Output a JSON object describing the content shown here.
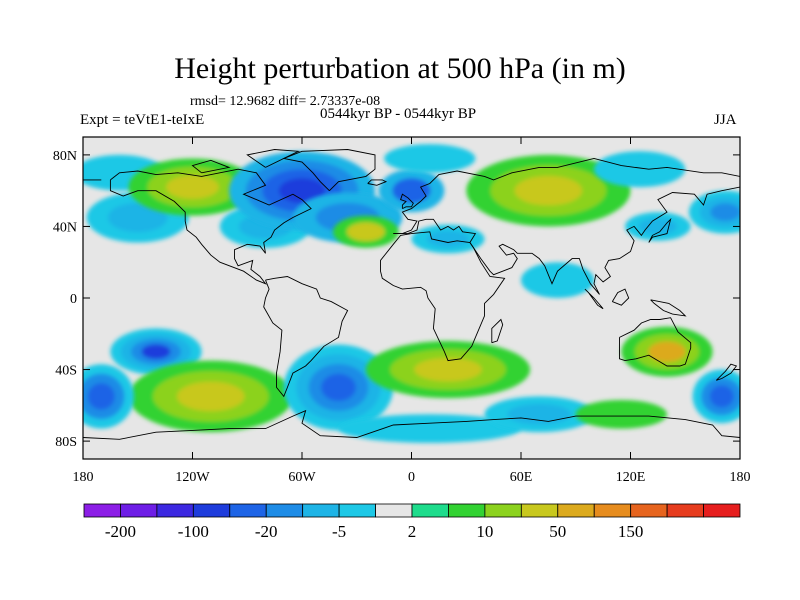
{
  "title": "Height perturbation at 500 hPa (in m)",
  "stats": "rmsd= 12.9682 diff= 2.73337e-08",
  "subtitle": "0544kyr BP - 0544kyr BP",
  "expt": "Expt = teVtE1-teIxE",
  "season": "JJA",
  "map": {
    "projection": "cylindrical-equidistant",
    "lon_range": [
      -180,
      180
    ],
    "lat_range": [
      -90,
      90
    ],
    "lat_ticks": [
      {
        "value": 80,
        "label": "80N"
      },
      {
        "value": 40,
        "label": "40N"
      },
      {
        "value": 0,
        "label": "0"
      },
      {
        "value": -40,
        "label": "40S"
      },
      {
        "value": -80,
        "label": "80S"
      }
    ],
    "lon_ticks": [
      {
        "value": -180,
        "label": "180"
      },
      {
        "value": -120,
        "label": "120W"
      },
      {
        "value": -60,
        "label": "60W"
      },
      {
        "value": 0,
        "label": "0"
      },
      {
        "value": 60,
        "label": "60E"
      },
      {
        "value": 120,
        "label": "120E"
      },
      {
        "value": 180,
        "label": "180"
      }
    ],
    "background_color": "#e6e6e6"
  },
  "colorbar": {
    "colors": [
      "#8c1ee6",
      "#6e1ee6",
      "#3c28e1",
      "#1e3cdc",
      "#1e64e6",
      "#1e8ce6",
      "#1eb4e6",
      "#1ec8e6",
      "#e6e6e6",
      "#1edc8c",
      "#32d232",
      "#8cd21e",
      "#c8c81e",
      "#dcaa1e",
      "#e68c1e",
      "#e6641e",
      "#e63c1e",
      "#e61e1e"
    ],
    "labels": [
      {
        "after_box": 1,
        "text": "-200"
      },
      {
        "after_box": 3,
        "text": "-100"
      },
      {
        "after_box": 5,
        "text": "-20"
      },
      {
        "after_box": 7,
        "text": "-5"
      },
      {
        "after_box": 9,
        "text": "2"
      },
      {
        "after_box": 11,
        "text": "10"
      },
      {
        "after_box": 13,
        "text": "50"
      },
      {
        "after_box": 15,
        "text": "150"
      }
    ]
  },
  "anomalies": [
    {
      "lon": -160,
      "lat": 70,
      "rx": 25,
      "ry": 10,
      "colors": [
        "#1ec8e6"
      ]
    },
    {
      "lon": -150,
      "lat": 45,
      "rx": 28,
      "ry": 14,
      "colors": [
        "#1ec8e6",
        "#1eb4e6"
      ]
    },
    {
      "lon": -120,
      "lat": 62,
      "rx": 35,
      "ry": 16,
      "colors": [
        "#32d232",
        "#8cd21e",
        "#c8c81e"
      ]
    },
    {
      "lon": -80,
      "lat": 40,
      "rx": 25,
      "ry": 12,
      "colors": [
        "#1ec8e6",
        "#1eb4e6"
      ]
    },
    {
      "lon": -60,
      "lat": 60,
      "rx": 40,
      "ry": 22,
      "colors": [
        "#1eb4e6",
        "#1e8ce6",
        "#1e64e6",
        "#1e3cdc"
      ]
    },
    {
      "lon": -35,
      "lat": 45,
      "rx": 30,
      "ry": 14,
      "colors": [
        "#1eb4e6",
        "#1e8ce6"
      ]
    },
    {
      "lon": -25,
      "lat": 37,
      "rx": 18,
      "ry": 9,
      "colors": [
        "#32d232",
        "#c8c81e"
      ]
    },
    {
      "lon": 0,
      "lat": 60,
      "rx": 18,
      "ry": 12,
      "colors": [
        "#1eb4e6",
        "#1e64e6"
      ]
    },
    {
      "lon": 10,
      "lat": 78,
      "rx": 25,
      "ry": 8,
      "colors": [
        "#1ec8e6"
      ]
    },
    {
      "lon": 75,
      "lat": 60,
      "rx": 45,
      "ry": 20,
      "colors": [
        "#32d232",
        "#8cd21e",
        "#c8c81e"
      ]
    },
    {
      "lon": 125,
      "lat": 72,
      "rx": 25,
      "ry": 10,
      "colors": [
        "#1ec8e6"
      ]
    },
    {
      "lon": 135,
      "lat": 40,
      "rx": 18,
      "ry": 8,
      "colors": [
        "#1ec8e6",
        "#1eb4e6"
      ]
    },
    {
      "lon": 172,
      "lat": 48,
      "rx": 20,
      "ry": 12,
      "colors": [
        "#1ec8e6",
        "#1eb4e6",
        "#1e8ce6"
      ]
    },
    {
      "lon": 20,
      "lat": 33,
      "rx": 20,
      "ry": 8,
      "colors": [
        "#1ec8e6",
        "#1eb4e6"
      ]
    },
    {
      "lon": 80,
      "lat": 10,
      "rx": 20,
      "ry": 10,
      "colors": [
        "#1ec8e6"
      ]
    },
    {
      "lon": -140,
      "lat": -30,
      "rx": 25,
      "ry": 13,
      "colors": [
        "#1ec8e6",
        "#1eb4e6",
        "#1e8ce6",
        "#1e3cdc"
      ]
    },
    {
      "lon": -110,
      "lat": -55,
      "rx": 45,
      "ry": 20,
      "colors": [
        "#32d232",
        "#8cd21e",
        "#c8c81e"
      ]
    },
    {
      "lon": -170,
      "lat": -55,
      "rx": 18,
      "ry": 18,
      "colors": [
        "#1ec8e6",
        "#1e8ce6",
        "#1e64e6"
      ]
    },
    {
      "lon": -40,
      "lat": -50,
      "rx": 30,
      "ry": 24,
      "colors": [
        "#1ec8e6",
        "#1eb4e6",
        "#1e8ce6",
        "#1e64e6"
      ]
    },
    {
      "lon": 20,
      "lat": -40,
      "rx": 45,
      "ry": 16,
      "colors": [
        "#32d232",
        "#8cd21e",
        "#c8c81e"
      ]
    },
    {
      "lon": 10,
      "lat": -73,
      "rx": 50,
      "ry": 8,
      "colors": [
        "#1ec8e6"
      ]
    },
    {
      "lon": 70,
      "lat": -65,
      "rx": 30,
      "ry": 10,
      "colors": [
        "#1ec8e6",
        "#1eb4e6"
      ]
    },
    {
      "lon": 140,
      "lat": -30,
      "rx": 25,
      "ry": 14,
      "colors": [
        "#32d232",
        "#8cd21e",
        "#dcaa1e"
      ]
    },
    {
      "lon": 170,
      "lat": -55,
      "rx": 16,
      "ry": 15,
      "colors": [
        "#1ec8e6",
        "#1e8ce6",
        "#1e64e6"
      ]
    },
    {
      "lon": 115,
      "lat": -65,
      "rx": 25,
      "ry": 8,
      "colors": [
        "#32d232"
      ]
    }
  ],
  "coastlines": [
    [
      [
        -165,
        66
      ],
      [
        -160,
        70
      ],
      [
        -150,
        71
      ],
      [
        -140,
        69
      ],
      [
        -128,
        70
      ],
      [
        -115,
        68
      ],
      [
        -95,
        72
      ],
      [
        -85,
        70
      ],
      [
        -80,
        63
      ],
      [
        -92,
        58
      ],
      [
        -85,
        55
      ],
      [
        -78,
        52
      ],
      [
        -65,
        58
      ],
      [
        -60,
        55
      ],
      [
        -55,
        50
      ],
      [
        -65,
        45
      ],
      [
        -70,
        42
      ],
      [
        -75,
        38
      ],
      [
        -77,
        34
      ],
      [
        -81,
        31
      ],
      [
        -80,
        25
      ],
      [
        -83,
        29
      ],
      [
        -90,
        30
      ],
      [
        -97,
        27
      ],
      [
        -97,
        22
      ],
      [
        -95,
        18
      ],
      [
        -87,
        21
      ],
      [
        -88,
        16
      ],
      [
        -83,
        12
      ],
      [
        -80,
        8
      ],
      [
        -85,
        10
      ],
      [
        -92,
        15
      ],
      [
        -105,
        20
      ],
      [
        -110,
        24
      ],
      [
        -115,
        30
      ],
      [
        -118,
        34
      ],
      [
        -123,
        38
      ],
      [
        -124,
        43
      ],
      [
        -124,
        48
      ],
      [
        -130,
        54
      ],
      [
        -140,
        60
      ],
      [
        -150,
        60
      ],
      [
        -158,
        57
      ],
      [
        -165,
        60
      ],
      [
        -165,
        66
      ]
    ],
    [
      [
        -45,
        60
      ],
      [
        -50,
        65
      ],
      [
        -54,
        70
      ],
      [
        -60,
        76
      ],
      [
        -70,
        78
      ],
      [
        -60,
        82
      ],
      [
        -35,
        83
      ],
      [
        -20,
        80
      ],
      [
        -20,
        72
      ],
      [
        -25,
        68
      ],
      [
        -40,
        65
      ],
      [
        -45,
        60
      ]
    ],
    [
      [
        -80,
        10
      ],
      [
        -75,
        11
      ],
      [
        -68,
        12
      ],
      [
        -60,
        8
      ],
      [
        -52,
        5
      ],
      [
        -50,
        0
      ],
      [
        -44,
        -2
      ],
      [
        -35,
        -7
      ],
      [
        -38,
        -13
      ],
      [
        -40,
        -22
      ],
      [
        -48,
        -27
      ],
      [
        -55,
        -35
      ],
      [
        -58,
        -38
      ],
      [
        -65,
        -42
      ],
      [
        -68,
        -50
      ],
      [
        -70,
        -55
      ],
      [
        -74,
        -50
      ],
      [
        -74,
        -42
      ],
      [
        -72,
        -30
      ],
      [
        -71,
        -18
      ],
      [
        -76,
        -14
      ],
      [
        -81,
        -5
      ],
      [
        -80,
        0
      ],
      [
        -78,
        5
      ],
      [
        -80,
        10
      ]
    ],
    [
      [
        -10,
        36
      ],
      [
        -5,
        36
      ],
      [
        0,
        38
      ],
      [
        3,
        43
      ],
      [
        -2,
        44
      ],
      [
        -5,
        48
      ],
      [
        0,
        50
      ],
      [
        5,
        54
      ],
      [
        8,
        57
      ],
      [
        5,
        62
      ],
      [
        10,
        64
      ],
      [
        15,
        69
      ],
      [
        25,
        71
      ],
      [
        40,
        68
      ],
      [
        45,
        66
      ],
      [
        55,
        70
      ],
      [
        70,
        73
      ],
      [
        80,
        73
      ],
      [
        100,
        78
      ],
      [
        115,
        74
      ],
      [
        130,
        72
      ],
      [
        140,
        73
      ],
      [
        160,
        70
      ],
      [
        170,
        70
      ],
      [
        180,
        68
      ]
    ],
    [
      [
        -180,
        66
      ],
      [
        -170,
        66
      ]
    ],
    [
      [
        180,
        62
      ],
      [
        170,
        60
      ],
      [
        162,
        58
      ],
      [
        160,
        52
      ],
      [
        155,
        58
      ],
      [
        143,
        59
      ],
      [
        135,
        55
      ],
      [
        140,
        48
      ],
      [
        132,
        43
      ],
      [
        128,
        38
      ],
      [
        126,
        35
      ],
      [
        122,
        40
      ],
      [
        118,
        38
      ],
      [
        122,
        32
      ],
      [
        120,
        26
      ],
      [
        114,
        22
      ],
      [
        108,
        21
      ],
      [
        106,
        17
      ],
      [
        109,
        12
      ],
      [
        105,
        9
      ],
      [
        101,
        13
      ],
      [
        100,
        8
      ],
      [
        103,
        2
      ],
      [
        98,
        8
      ],
      [
        94,
        16
      ],
      [
        92,
        22
      ],
      [
        88,
        22
      ],
      [
        80,
        15
      ],
      [
        77,
        8
      ],
      [
        73,
        18
      ],
      [
        70,
        22
      ],
      [
        66,
        25
      ],
      [
        58,
        25
      ],
      [
        56,
        27
      ],
      [
        50,
        30
      ],
      [
        48,
        29
      ],
      [
        52,
        24
      ],
      [
        56,
        25
      ],
      [
        58,
        22
      ],
      [
        55,
        17
      ],
      [
        45,
        13
      ],
      [
        43,
        15
      ],
      [
        38,
        22
      ],
      [
        34,
        28
      ],
      [
        32,
        31
      ],
      [
        35,
        36
      ],
      [
        28,
        37
      ],
      [
        26,
        40
      ],
      [
        23,
        38
      ],
      [
        20,
        40
      ],
      [
        16,
        38
      ],
      [
        12,
        44
      ],
      [
        8,
        44
      ],
      [
        4,
        43
      ],
      [
        3,
        38
      ],
      [
        -2,
        36
      ],
      [
        -10,
        36
      ]
    ],
    [
      [
        -17,
        15
      ],
      [
        -17,
        21
      ],
      [
        -10,
        30
      ],
      [
        -6,
        35
      ],
      [
        0,
        36
      ],
      [
        10,
        37
      ],
      [
        11,
        33
      ],
      [
        20,
        31
      ],
      [
        25,
        32
      ],
      [
        32,
        31
      ],
      [
        34,
        28
      ],
      [
        38,
        20
      ],
      [
        43,
        12
      ],
      [
        51,
        11
      ],
      [
        45,
        2
      ],
      [
        40,
        -3
      ],
      [
        40,
        -10
      ],
      [
        35,
        -22
      ],
      [
        33,
        -27
      ],
      [
        27,
        -34
      ],
      [
        20,
        -35
      ],
      [
        18,
        -30
      ],
      [
        12,
        -17
      ],
      [
        13,
        -6
      ],
      [
        9,
        0
      ],
      [
        8,
        4
      ],
      [
        5,
        6
      ],
      [
        -5,
        5
      ],
      [
        -10,
        7
      ],
      [
        -16,
        11
      ],
      [
        -17,
        15
      ]
    ],
    [
      [
        114,
        -22
      ],
      [
        114,
        -34
      ],
      [
        117,
        -35
      ],
      [
        123,
        -34
      ],
      [
        130,
        -32
      ],
      [
        135,
        -35
      ],
      [
        140,
        -38
      ],
      [
        147,
        -38
      ],
      [
        150,
        -37
      ],
      [
        153,
        -28
      ],
      [
        153,
        -25
      ],
      [
        146,
        -19
      ],
      [
        142,
        -11
      ],
      [
        136,
        -12
      ],
      [
        131,
        -12
      ],
      [
        126,
        -14
      ],
      [
        122,
        -18
      ],
      [
        114,
        -22
      ]
    ],
    [
      [
        -180,
        -78
      ],
      [
        -160,
        -79
      ],
      [
        -140,
        -75
      ],
      [
        -120,
        -74
      ],
      [
        -100,
        -73
      ],
      [
        -80,
        -73
      ],
      [
        -65,
        -66
      ],
      [
        -58,
        -63
      ],
      [
        -60,
        -70
      ],
      [
        -50,
        -77
      ],
      [
        -30,
        -78
      ],
      [
        -10,
        -71
      ],
      [
        10,
        -70
      ],
      [
        30,
        -69
      ],
      [
        45,
        -68
      ],
      [
        60,
        -67
      ],
      [
        75,
        -69
      ],
      [
        90,
        -66
      ],
      [
        110,
        -66
      ],
      [
        130,
        -66
      ],
      [
        150,
        -68
      ],
      [
        165,
        -71
      ],
      [
        170,
        -77
      ],
      [
        180,
        -78
      ]
    ],
    [
      [
        -5,
        50
      ],
      [
        -3,
        51
      ],
      [
        0,
        51
      ],
      [
        1,
        53
      ],
      [
        -2,
        56
      ],
      [
        -5,
        58
      ],
      [
        -6,
        55
      ],
      [
        -3,
        54
      ],
      [
        -5,
        52
      ],
      [
        -5,
        50
      ]
    ],
    [
      [
        -24,
        64
      ],
      [
        -22,
        66
      ],
      [
        -16,
        66
      ],
      [
        -14,
        65
      ],
      [
        -19,
        63
      ],
      [
        -24,
        64
      ]
    ],
    [
      [
        130,
        31
      ],
      [
        132,
        34
      ],
      [
        136,
        35
      ],
      [
        140,
        36
      ],
      [
        141,
        40
      ],
      [
        142,
        44
      ],
      [
        140,
        42
      ],
      [
        136,
        37
      ],
      [
        132,
        35
      ],
      [
        130,
        31
      ]
    ],
    [
      [
        95,
        5
      ],
      [
        100,
        0
      ],
      [
        105,
        -6
      ],
      [
        102,
        -4
      ],
      [
        97,
        3
      ],
      [
        95,
        5
      ]
    ],
    [
      [
        110,
        -2
      ],
      [
        115,
        -4
      ],
      [
        119,
        0
      ],
      [
        117,
        5
      ],
      [
        113,
        3
      ],
      [
        110,
        -2
      ]
    ],
    [
      [
        131,
        -1
      ],
      [
        141,
        -3
      ],
      [
        147,
        -7
      ],
      [
        150,
        -10
      ],
      [
        143,
        -9
      ],
      [
        138,
        -7
      ],
      [
        133,
        -3
      ],
      [
        131,
        -1
      ]
    ],
    [
      [
        44,
        -25
      ],
      [
        47,
        -24
      ],
      [
        50,
        -15
      ],
      [
        49,
        -12
      ],
      [
        44,
        -17
      ],
      [
        44,
        -25
      ]
    ],
    [
      [
        172,
        -41
      ],
      [
        175,
        -37
      ],
      [
        178,
        -38
      ],
      [
        175,
        -42
      ],
      [
        170,
        -45
      ],
      [
        167,
        -46
      ],
      [
        172,
        -41
      ]
    ],
    [
      [
        -80,
        73
      ],
      [
        -90,
        80
      ],
      [
        -75,
        83
      ],
      [
        -62,
        82
      ],
      [
        -80,
        73
      ]
    ],
    [
      [
        -115,
        70
      ],
      [
        -100,
        73
      ],
      [
        -110,
        77
      ],
      [
        -120,
        74
      ],
      [
        -115,
        70
      ]
    ]
  ]
}
